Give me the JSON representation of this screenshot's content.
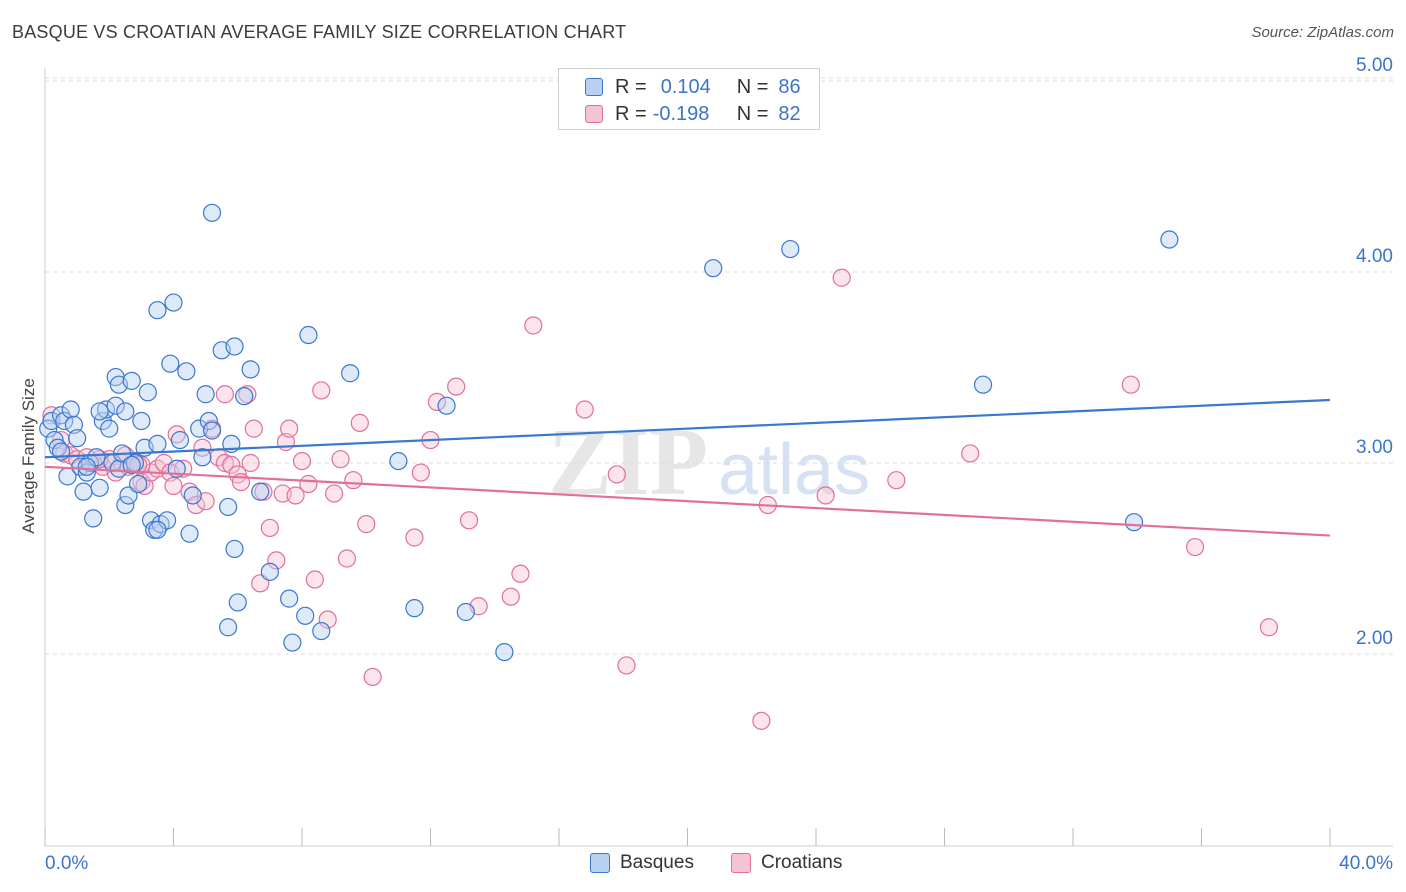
{
  "title": "BASQUE VS CROATIAN AVERAGE FAMILY SIZE CORRELATION CHART",
  "source": "Source: ZipAtlas.com",
  "watermark": {
    "zip": "ZIP",
    "atlas": "atlas"
  },
  "legend": {
    "rows": [
      {
        "r_label": "R =",
        "r_value": "0.104",
        "n_label": "N =",
        "n_value": "86"
      },
      {
        "r_label": "R =",
        "r_value": "-0.198",
        "n_label": "N =",
        "n_value": "82"
      }
    ]
  },
  "colors": {
    "blue": "#3a77d0",
    "blue_fill": "#b8d0f2",
    "pink": "#e0709a",
    "pink_fill": "#f6c3d3",
    "axis_label": "#3d74c8",
    "grid": "#dcdcdc"
  },
  "chart_data": {
    "type": "scatter",
    "ylabel": "Average Family Size",
    "xlabel": "",
    "xlim": [
      0,
      40
    ],
    "ylim": [
      1.0,
      5.1
    ],
    "y_ticks": [
      2.0,
      3.0,
      4.0,
      5.0
    ],
    "y_tick_labels": [
      "2.00",
      "3.00",
      "4.00",
      "5.00"
    ],
    "x_tick_labels": {
      "min": "0.0%",
      "max": "40.0%"
    },
    "grid": true,
    "legend_position": "top-center",
    "series": [
      {
        "name": "Basques",
        "color": "#3a77d0",
        "trend": {
          "x": [
            0,
            40
          ],
          "y": [
            3.03,
            3.33
          ]
        },
        "points": [
          [
            0.1,
            3.18
          ],
          [
            0.2,
            3.22
          ],
          [
            0.3,
            3.12
          ],
          [
            0.4,
            3.08
          ],
          [
            0.5,
            3.25
          ],
          [
            0.6,
            3.22
          ],
          [
            0.7,
            2.93
          ],
          [
            0.8,
            3.28
          ],
          [
            0.9,
            3.2
          ],
          [
            1.0,
            3.13
          ],
          [
            1.1,
            2.98
          ],
          [
            1.2,
            2.85
          ],
          [
            1.3,
            2.95
          ],
          [
            1.4,
            3.0
          ],
          [
            1.5,
            2.71
          ],
          [
            1.6,
            3.03
          ],
          [
            1.7,
            2.87
          ],
          [
            1.8,
            3.22
          ],
          [
            1.9,
            3.28
          ],
          [
            2.0,
            3.18
          ],
          [
            2.2,
            3.3
          ],
          [
            2.1,
            3.0
          ],
          [
            2.3,
            2.97
          ],
          [
            2.4,
            3.05
          ],
          [
            2.5,
            3.27
          ],
          [
            2.2,
            3.45
          ],
          [
            2.3,
            3.41
          ],
          [
            2.5,
            2.78
          ],
          [
            2.6,
            2.83
          ],
          [
            2.7,
            3.43
          ],
          [
            2.8,
            3.0
          ],
          [
            2.9,
            2.89
          ],
          [
            3.0,
            3.22
          ],
          [
            3.1,
            3.08
          ],
          [
            3.2,
            3.37
          ],
          [
            3.3,
            2.7
          ],
          [
            3.4,
            2.65
          ],
          [
            3.5,
            3.1
          ],
          [
            3.5,
            3.8
          ],
          [
            3.6,
            2.68
          ],
          [
            3.8,
            2.7
          ],
          [
            3.9,
            3.52
          ],
          [
            4.0,
            3.84
          ],
          [
            4.1,
            2.97
          ],
          [
            4.2,
            3.12
          ],
          [
            4.4,
            3.48
          ],
          [
            4.5,
            2.63
          ],
          [
            4.6,
            2.83
          ],
          [
            4.8,
            3.18
          ],
          [
            4.9,
            3.03
          ],
          [
            5.0,
            3.36
          ],
          [
            5.1,
            3.22
          ],
          [
            5.2,
            3.17
          ],
          [
            5.2,
            4.31
          ],
          [
            5.5,
            3.59
          ],
          [
            5.7,
            2.77
          ],
          [
            5.8,
            3.1
          ],
          [
            5.9,
            2.55
          ],
          [
            5.9,
            3.61
          ],
          [
            6.0,
            2.27
          ],
          [
            6.2,
            3.35
          ],
          [
            6.4,
            3.49
          ],
          [
            6.7,
            2.85
          ],
          [
            7.0,
            2.43
          ],
          [
            7.6,
            2.29
          ],
          [
            7.7,
            2.06
          ],
          [
            8.1,
            2.2
          ],
          [
            8.2,
            3.67
          ],
          [
            8.6,
            2.12
          ],
          [
            9.5,
            3.47
          ],
          [
            11.0,
            3.01
          ],
          [
            11.5,
            2.24
          ],
          [
            12.5,
            3.3
          ],
          [
            13.1,
            2.22
          ],
          [
            14.3,
            2.01
          ],
          [
            20.8,
            4.02
          ],
          [
            23.2,
            4.12
          ],
          [
            29.2,
            3.41
          ],
          [
            33.9,
            2.69
          ],
          [
            35.0,
            4.17
          ],
          [
            1.3,
            2.98
          ],
          [
            2.7,
            2.99
          ],
          [
            3.5,
            2.65
          ],
          [
            5.7,
            2.14
          ],
          [
            0.5,
            3.06
          ],
          [
            1.7,
            3.27
          ]
        ]
      },
      {
        "name": "Croatians",
        "color": "#e0709a",
        "trend": {
          "x": [
            0,
            40
          ],
          "y": [
            2.98,
            2.62
          ]
        },
        "points": [
          [
            0.2,
            3.25
          ],
          [
            0.5,
            3.12
          ],
          [
            0.6,
            3.05
          ],
          [
            0.8,
            3.04
          ],
          [
            1.0,
            3.02
          ],
          [
            1.3,
            3.03
          ],
          [
            1.5,
            3.0
          ],
          [
            1.8,
            2.98
          ],
          [
            2.0,
            3.02
          ],
          [
            2.2,
            2.95
          ],
          [
            2.4,
            3.0
          ],
          [
            2.5,
            3.04
          ],
          [
            2.6,
            2.98
          ],
          [
            2.8,
            3.0
          ],
          [
            3.0,
            2.9
          ],
          [
            3.1,
            2.88
          ],
          [
            3.3,
            2.95
          ],
          [
            3.5,
            2.97
          ],
          [
            3.7,
            3.0
          ],
          [
            3.9,
            2.95
          ],
          [
            4.0,
            2.88
          ],
          [
            4.1,
            3.15
          ],
          [
            4.3,
            2.97
          ],
          [
            4.5,
            2.85
          ],
          [
            4.7,
            2.78
          ],
          [
            4.9,
            3.08
          ],
          [
            5.0,
            2.8
          ],
          [
            5.2,
            3.18
          ],
          [
            5.4,
            3.03
          ],
          [
            5.6,
            3.0
          ],
          [
            5.8,
            2.99
          ],
          [
            6.0,
            2.94
          ],
          [
            6.1,
            2.9
          ],
          [
            6.3,
            3.36
          ],
          [
            6.5,
            3.18
          ],
          [
            6.7,
            2.37
          ],
          [
            6.8,
            2.85
          ],
          [
            7.0,
            2.66
          ],
          [
            7.2,
            2.49
          ],
          [
            7.4,
            2.84
          ],
          [
            7.5,
            3.11
          ],
          [
            7.6,
            3.18
          ],
          [
            7.8,
            2.83
          ],
          [
            8.0,
            3.01
          ],
          [
            8.2,
            2.89
          ],
          [
            8.4,
            2.39
          ],
          [
            8.6,
            3.38
          ],
          [
            8.8,
            2.18
          ],
          [
            9.0,
            2.84
          ],
          [
            9.2,
            3.02
          ],
          [
            9.4,
            2.5
          ],
          [
            9.6,
            2.91
          ],
          [
            9.8,
            3.21
          ],
          [
            10.0,
            2.68
          ],
          [
            10.2,
            1.88
          ],
          [
            11.5,
            2.61
          ],
          [
            11.7,
            2.95
          ],
          [
            12.0,
            3.12
          ],
          [
            12.2,
            3.32
          ],
          [
            12.8,
            3.4
          ],
          [
            13.2,
            2.7
          ],
          [
            13.5,
            2.25
          ],
          [
            14.5,
            2.3
          ],
          [
            14.8,
            2.42
          ],
          [
            15.2,
            3.72
          ],
          [
            16.8,
            3.28
          ],
          [
            17.8,
            2.94
          ],
          [
            18.1,
            1.94
          ],
          [
            22.3,
            1.65
          ],
          [
            22.5,
            2.78
          ],
          [
            24.3,
            2.83
          ],
          [
            24.8,
            3.97
          ],
          [
            26.5,
            2.91
          ],
          [
            28.8,
            3.05
          ],
          [
            33.8,
            3.41
          ],
          [
            35.8,
            2.56
          ],
          [
            38.1,
            2.14
          ],
          [
            1.7,
            3.02
          ],
          [
            3.0,
            2.99
          ],
          [
            5.6,
            3.36
          ],
          [
            6.4,
            3.0
          ],
          [
            2.9,
            2.99
          ]
        ]
      }
    ]
  }
}
